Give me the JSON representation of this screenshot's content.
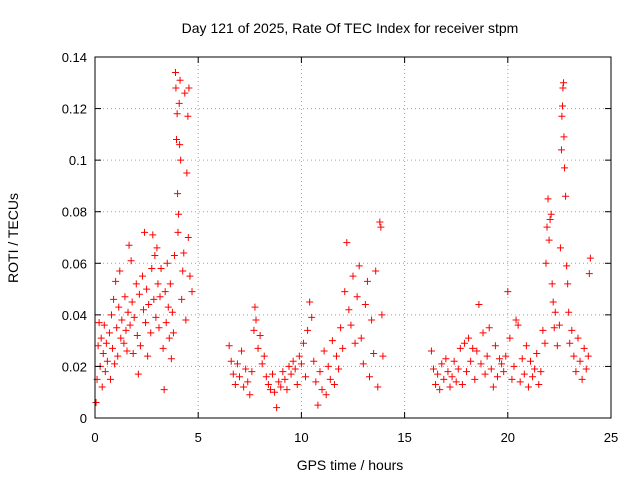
{
  "chart_data": {
    "type": "scatter",
    "title": "Day 121 of 2025, Rate Of TEC Index for receiver stpm",
    "xlabel": "GPS time / hours",
    "ylabel": "ROTI / TECUs",
    "xlim": [
      0,
      25
    ],
    "ylim": [
      0,
      0.14
    ],
    "xticks": [
      0,
      5,
      10,
      15,
      20,
      25
    ],
    "xtick_labels": [
      "0",
      "5",
      "10",
      "15",
      "20",
      "25"
    ],
    "yticks": [
      0,
      0.02,
      0.04,
      0.06,
      0.08,
      0.1,
      0.12,
      0.14
    ],
    "ytick_labels": [
      "0",
      "0.02",
      "0.04",
      "0.06",
      "0.08",
      "0.1",
      "0.12",
      "0.14"
    ],
    "grid": true,
    "marker": "plus",
    "color": "#ff0000",
    "series": [
      {
        "name": "ROTI",
        "points": [
          [
            0.05,
            0.006
          ],
          [
            0.1,
            0.015
          ],
          [
            0.15,
            0.028
          ],
          [
            0.2,
            0.037
          ],
          [
            0.25,
            0.02
          ],
          [
            0.3,
            0.031
          ],
          [
            0.35,
            0.012
          ],
          [
            0.4,
            0.025
          ],
          [
            0.45,
            0.036
          ],
          [
            0.5,
            0.018
          ],
          [
            0.55,
            0.029
          ],
          [
            0.6,
            0.022
          ],
          [
            0.7,
            0.033
          ],
          [
            0.75,
            0.015
          ],
          [
            0.8,
            0.04
          ],
          [
            0.85,
            0.027
          ],
          [
            0.9,
            0.046
          ],
          [
            0.95,
            0.021
          ],
          [
            1.0,
            0.053
          ],
          [
            1.05,
            0.035
          ],
          [
            1.1,
            0.024
          ],
          [
            1.15,
            0.043
          ],
          [
            1.2,
            0.057
          ],
          [
            1.25,
            0.031
          ],
          [
            1.3,
            0.038
          ],
          [
            1.4,
            0.029
          ],
          [
            1.45,
            0.047
          ],
          [
            1.5,
            0.034
          ],
          [
            1.55,
            0.026
          ],
          [
            1.6,
            0.041
          ],
          [
            1.65,
            0.067
          ],
          [
            1.7,
            0.036
          ],
          [
            1.75,
            0.061
          ],
          [
            1.8,
            0.045
          ],
          [
            1.85,
            0.025
          ],
          [
            1.9,
            0.039
          ],
          [
            2.0,
            0.052
          ],
          [
            2.05,
            0.032
          ],
          [
            2.1,
            0.017
          ],
          [
            2.15,
            0.048
          ],
          [
            2.2,
            0.028
          ],
          [
            2.3,
            0.055
          ],
          [
            2.35,
            0.042
          ],
          [
            2.4,
            0.072
          ],
          [
            2.45,
            0.037
          ],
          [
            2.5,
            0.05
          ],
          [
            2.55,
            0.024
          ],
          [
            2.6,
            0.044
          ],
          [
            2.7,
            0.033
          ],
          [
            2.75,
            0.058
          ],
          [
            2.8,
            0.071
          ],
          [
            2.85,
            0.046
          ],
          [
            2.9,
            0.063
          ],
          [
            2.95,
            0.039
          ],
          [
            3.0,
            0.066
          ],
          [
            3.05,
            0.052
          ],
          [
            3.1,
            0.035
          ],
          [
            3.15,
            0.047
          ],
          [
            3.2,
            0.058
          ],
          [
            3.3,
            0.027
          ],
          [
            3.35,
            0.011
          ],
          [
            3.4,
            0.049
          ],
          [
            3.45,
            0.037
          ],
          [
            3.5,
            0.06
          ],
          [
            3.55,
            0.043
          ],
          [
            3.6,
            0.031
          ],
          [
            3.65,
            0.052
          ],
          [
            3.7,
            0.023
          ],
          [
            3.75,
            0.041
          ],
          [
            3.8,
            0.033
          ],
          [
            3.85,
            0.063
          ],
          [
            3.9,
            0.134
          ],
          [
            3.92,
            0.128
          ],
          [
            3.95,
            0.108
          ],
          [
            3.98,
            0.118
          ],
          [
            4.0,
            0.087
          ],
          [
            4.02,
            0.072
          ],
          [
            4.05,
            0.079
          ],
          [
            4.08,
            0.122
          ],
          [
            4.1,
            0.106
          ],
          [
            4.12,
            0.131
          ],
          [
            4.15,
            0.1
          ],
          [
            4.2,
            0.046
          ],
          [
            4.25,
            0.057
          ],
          [
            4.3,
            0.064
          ],
          [
            4.35,
            0.126
          ],
          [
            4.4,
            0.038
          ],
          [
            4.45,
            0.095
          ],
          [
            4.5,
            0.117
          ],
          [
            4.52,
            0.07
          ],
          [
            4.55,
            0.128
          ],
          [
            4.6,
            0.055
          ],
          [
            4.7,
            0.049
          ],
          [
            6.5,
            0.028
          ],
          [
            6.6,
            0.022
          ],
          [
            6.7,
            0.017
          ],
          [
            6.8,
            0.013
          ],
          [
            6.9,
            0.021
          ],
          [
            7.0,
            0.016
          ],
          [
            7.1,
            0.026
          ],
          [
            7.2,
            0.012
          ],
          [
            7.3,
            0.019
          ],
          [
            7.4,
            0.014
          ],
          [
            7.5,
            0.009
          ],
          [
            7.6,
            0.018
          ],
          [
            7.7,
            0.034
          ],
          [
            7.75,
            0.043
          ],
          [
            7.8,
            0.038
          ],
          [
            7.9,
            0.027
          ],
          [
            8.0,
            0.032
          ],
          [
            8.1,
            0.021
          ],
          [
            8.2,
            0.024
          ],
          [
            8.3,
            0.016
          ],
          [
            8.4,
            0.013
          ],
          [
            8.5,
            0.011
          ],
          [
            8.6,
            0.017
          ],
          [
            8.7,
            0.01
          ],
          [
            8.8,
            0.004
          ],
          [
            8.9,
            0.014
          ],
          [
            9.0,
            0.012
          ],
          [
            9.1,
            0.018
          ],
          [
            9.2,
            0.015
          ],
          [
            9.3,
            0.011
          ],
          [
            9.4,
            0.02
          ],
          [
            9.5,
            0.017
          ],
          [
            9.6,
            0.022
          ],
          [
            9.7,
            0.019
          ],
          [
            9.8,
            0.013
          ],
          [
            9.9,
            0.024
          ],
          [
            10.0,
            0.021
          ],
          [
            10.1,
            0.029
          ],
          [
            10.2,
            0.016
          ],
          [
            10.3,
            0.034
          ],
          [
            10.4,
            0.045
          ],
          [
            10.5,
            0.039
          ],
          [
            10.6,
            0.022
          ],
          [
            10.7,
            0.014
          ],
          [
            10.8,
            0.005
          ],
          [
            10.9,
            0.018
          ],
          [
            11.0,
            0.011
          ],
          [
            11.1,
            0.026
          ],
          [
            11.2,
            0.009
          ],
          [
            11.3,
            0.02
          ],
          [
            11.4,
            0.015
          ],
          [
            11.5,
            0.03
          ],
          [
            11.6,
            0.013
          ],
          [
            11.7,
            0.024
          ],
          [
            11.8,
            0.019
          ],
          [
            11.9,
            0.035
          ],
          [
            12.0,
            0.027
          ],
          [
            12.1,
            0.049
          ],
          [
            12.2,
            0.068
          ],
          [
            12.3,
            0.042
          ],
          [
            12.4,
            0.036
          ],
          [
            12.5,
            0.055
          ],
          [
            12.6,
            0.029
          ],
          [
            12.7,
            0.047
          ],
          [
            12.8,
            0.059
          ],
          [
            12.9,
            0.031
          ],
          [
            13.0,
            0.021
          ],
          [
            13.1,
            0.044
          ],
          [
            13.2,
            0.053
          ],
          [
            13.3,
            0.016
          ],
          [
            13.4,
            0.038
          ],
          [
            13.5,
            0.025
          ],
          [
            13.6,
            0.057
          ],
          [
            13.7,
            0.012
          ],
          [
            13.8,
            0.076
          ],
          [
            13.85,
            0.074
          ],
          [
            13.9,
            0.04
          ],
          [
            13.95,
            0.024
          ],
          [
            16.3,
            0.026
          ],
          [
            16.4,
            0.019
          ],
          [
            16.5,
            0.013
          ],
          [
            16.6,
            0.017
          ],
          [
            16.7,
            0.011
          ],
          [
            16.8,
            0.021
          ],
          [
            16.9,
            0.015
          ],
          [
            17.0,
            0.023
          ],
          [
            17.1,
            0.018
          ],
          [
            17.2,
            0.012
          ],
          [
            17.3,
            0.016
          ],
          [
            17.4,
            0.022
          ],
          [
            17.5,
            0.014
          ],
          [
            17.6,
            0.019
          ],
          [
            17.7,
            0.027
          ],
          [
            17.8,
            0.013
          ],
          [
            17.9,
            0.029
          ],
          [
            18.0,
            0.018
          ],
          [
            18.1,
            0.031
          ],
          [
            18.2,
            0.022
          ],
          [
            18.3,
            0.027
          ],
          [
            18.4,
            0.015
          ],
          [
            18.5,
            0.026
          ],
          [
            18.6,
            0.044
          ],
          [
            18.7,
            0.021
          ],
          [
            18.8,
            0.033
          ],
          [
            18.9,
            0.017
          ],
          [
            19.0,
            0.024
          ],
          [
            19.1,
            0.035
          ],
          [
            19.2,
            0.019
          ],
          [
            19.3,
            0.012
          ],
          [
            19.4,
            0.028
          ],
          [
            19.5,
            0.016
          ],
          [
            19.6,
            0.023
          ],
          [
            19.7,
            0.021
          ],
          [
            19.8,
            0.018
          ],
          [
            19.9,
            0.024
          ],
          [
            20.0,
            0.049
          ],
          [
            20.1,
            0.031
          ],
          [
            20.2,
            0.015
          ],
          [
            20.3,
            0.02
          ],
          [
            20.4,
            0.038
          ],
          [
            20.5,
            0.036
          ],
          [
            20.6,
            0.014
          ],
          [
            20.7,
            0.023
          ],
          [
            20.8,
            0.017
          ],
          [
            20.9,
            0.028
          ],
          [
            21.0,
            0.012
          ],
          [
            21.1,
            0.022
          ],
          [
            21.2,
            0.016
          ],
          [
            21.3,
            0.019
          ],
          [
            21.4,
            0.025
          ],
          [
            21.5,
            0.013
          ],
          [
            21.6,
            0.018
          ],
          [
            21.7,
            0.034
          ],
          [
            21.8,
            0.029
          ],
          [
            21.85,
            0.06
          ],
          [
            21.9,
            0.074
          ],
          [
            21.95,
            0.085
          ],
          [
            22.0,
            0.069
          ],
          [
            22.05,
            0.077
          ],
          [
            22.1,
            0.079
          ],
          [
            22.15,
            0.052
          ],
          [
            22.2,
            0.045
          ],
          [
            22.25,
            0.035
          ],
          [
            22.3,
            0.041
          ],
          [
            22.4,
            0.028
          ],
          [
            22.5,
            0.036
          ],
          [
            22.55,
            0.066
          ],
          [
            22.6,
            0.104
          ],
          [
            22.62,
            0.117
          ],
          [
            22.65,
            0.121
          ],
          [
            22.67,
            0.128
          ],
          [
            22.7,
            0.13
          ],
          [
            22.72,
            0.109
          ],
          [
            22.75,
            0.097
          ],
          [
            22.8,
            0.086
          ],
          [
            22.85,
            0.059
          ],
          [
            22.9,
            0.052
          ],
          [
            22.95,
            0.041
          ],
          [
            23.0,
            0.029
          ],
          [
            23.1,
            0.034
          ],
          [
            23.2,
            0.024
          ],
          [
            23.3,
            0.018
          ],
          [
            23.4,
            0.031
          ],
          [
            23.5,
            0.022
          ],
          [
            23.6,
            0.015
          ],
          [
            23.7,
            0.027
          ],
          [
            23.8,
            0.019
          ],
          [
            23.9,
            0.024
          ],
          [
            23.95,
            0.056
          ],
          [
            24.0,
            0.062
          ]
        ]
      }
    ]
  }
}
